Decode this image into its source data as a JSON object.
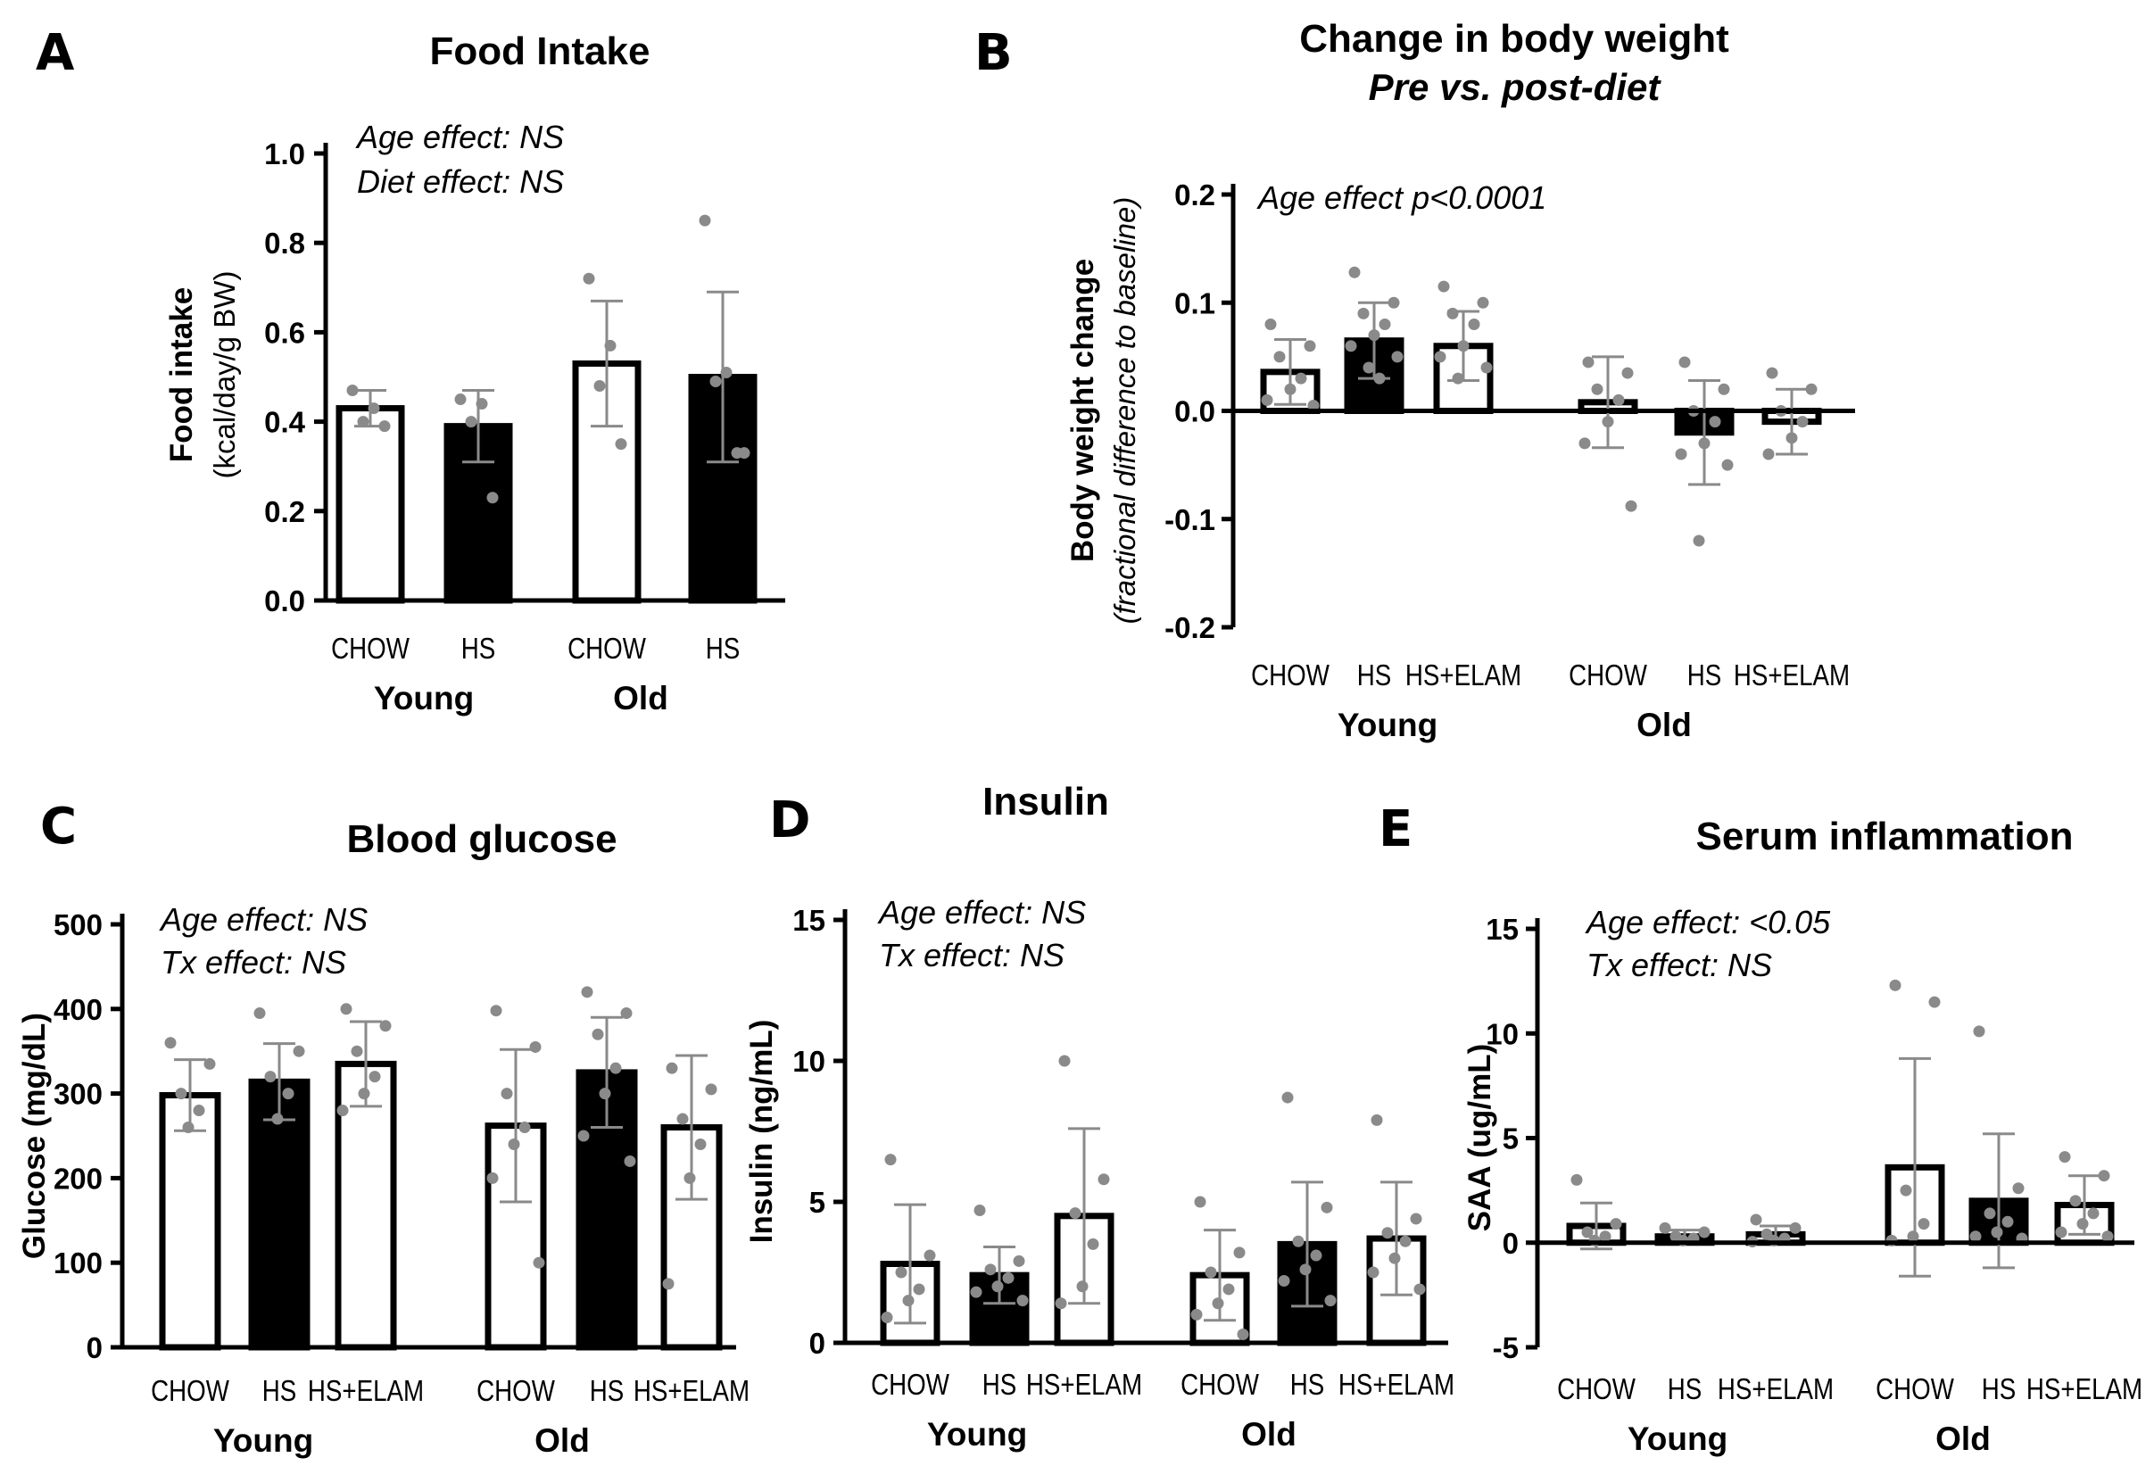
{
  "colors": {
    "axis": "#000000",
    "bar_black": "#000000",
    "bar_white": "#ffffff",
    "dot": "#8a8a8a",
    "error": "#8a8a8a"
  },
  "chart_data": [
    {
      "id": "A",
      "type": "bar",
      "panel_label": "A",
      "title": "Food Intake",
      "ylabel": "Food intake",
      "ylabel_sub": "(kcal/day/g BW)",
      "ylim": [
        0,
        1.0
      ],
      "yticks": [
        "0.0",
        "0.2",
        "0.4",
        "0.6",
        "0.8",
        "1.0"
      ],
      "annotations": [
        "Age effect: NS",
        "Diet effect: NS"
      ],
      "groups": [
        "Young",
        "Old"
      ],
      "bars": [
        {
          "group": "Young",
          "category": "CHOW",
          "value": 0.43,
          "sd": 0.04,
          "fill": "white",
          "points": [
            0.47,
            0.43,
            0.4,
            0.39
          ]
        },
        {
          "group": "Young",
          "category": "HS",
          "value": 0.39,
          "sd": 0.08,
          "fill": "black",
          "points": [
            0.45,
            0.44,
            0.4,
            0.23
          ]
        },
        {
          "group": "Old",
          "category": "CHOW",
          "value": 0.53,
          "sd": 0.14,
          "fill": "white",
          "points": [
            0.72,
            0.57,
            0.48,
            0.35
          ]
        },
        {
          "group": "Old",
          "category": "HS",
          "value": 0.5,
          "sd": 0.19,
          "fill": "black",
          "points": [
            0.85,
            0.51,
            0.49,
            0.33,
            0.33
          ]
        }
      ]
    },
    {
      "id": "B",
      "type": "bar",
      "panel_label": "B",
      "title": "Change in body weight",
      "subtitle": "Pre vs. post-diet",
      "ylabel": "Body weight change",
      "ylabel_sub": "(fractional difference to baseline)",
      "ylim": [
        -0.2,
        0.2
      ],
      "yticks": [
        "-0.2",
        "-0.1",
        "0.0",
        "0.1",
        "0.2"
      ],
      "annotations": [
        "Age effect p<0.0001"
      ],
      "groups": [
        "Young",
        "Old"
      ],
      "bars": [
        {
          "group": "Young",
          "category": "CHOW",
          "value": 0.036,
          "sd": 0.03,
          "fill": "white",
          "points": [
            0.08,
            0.06,
            0.05,
            0.03,
            0.02,
            0.01,
            0.005
          ]
        },
        {
          "group": "Young",
          "category": "HS",
          "value": 0.065,
          "sd": 0.035,
          "fill": "black",
          "points": [
            0.128,
            0.1,
            0.09,
            0.08,
            0.07,
            0.06,
            0.05,
            0.04,
            0.03
          ]
        },
        {
          "group": "Young",
          "category": "HS+ELAM",
          "value": 0.06,
          "sd": 0.032,
          "fill": "white",
          "points": [
            0.115,
            0.1,
            0.09,
            0.08,
            0.06,
            0.05,
            0.04,
            0.03
          ]
        },
        {
          "group": "Old",
          "category": "CHOW",
          "value": 0.008,
          "sd": 0.042,
          "fill": "white",
          "points": [
            0.045,
            0.035,
            0.02,
            0.01,
            -0.01,
            -0.03,
            -0.088
          ]
        },
        {
          "group": "Old",
          "category": "HS",
          "value": -0.02,
          "sd": 0.048,
          "fill": "black",
          "points": [
            0.045,
            0.02,
            0.0,
            -0.01,
            -0.03,
            -0.04,
            -0.05,
            -0.12
          ]
        },
        {
          "group": "Old",
          "category": "HS+ELAM",
          "value": -0.01,
          "sd": 0.03,
          "fill": "white",
          "points": [
            0.035,
            0.02,
            0.0,
            -0.01,
            -0.025,
            -0.04
          ]
        }
      ]
    },
    {
      "id": "C",
      "type": "bar",
      "panel_label": "C",
      "title": "Blood glucose",
      "ylabel": "Glucose (mg/dL)",
      "ylim": [
        0,
        500
      ],
      "yticks": [
        "0",
        "100",
        "200",
        "300",
        "400",
        "500"
      ],
      "annotations": [
        "Age effect: NS",
        "Tx effect: NS"
      ],
      "groups": [
        "Young",
        "Old"
      ],
      "bars": [
        {
          "group": "Young",
          "category": "CHOW",
          "value": 298,
          "sd": 42,
          "fill": "white",
          "points": [
            360,
            335,
            300,
            280,
            260
          ]
        },
        {
          "group": "Young",
          "category": "HS",
          "value": 314,
          "sd": 45,
          "fill": "black",
          "points": [
            395,
            350,
            320,
            300,
            270
          ]
        },
        {
          "group": "Young",
          "category": "HS+ELAM",
          "value": 335,
          "sd": 50,
          "fill": "white",
          "points": [
            400,
            380,
            350,
            320,
            300,
            280
          ]
        },
        {
          "group": "Old",
          "category": "CHOW",
          "value": 262,
          "sd": 90,
          "fill": "white",
          "points": [
            398,
            355,
            300,
            260,
            240,
            200,
            100
          ]
        },
        {
          "group": "Old",
          "category": "HS",
          "value": 325,
          "sd": 65,
          "fill": "black",
          "points": [
            420,
            395,
            370,
            330,
            300,
            250,
            220
          ]
        },
        {
          "group": "Old",
          "category": "HS+ELAM",
          "value": 260,
          "sd": 85,
          "fill": "white",
          "points": [
            330,
            305,
            270,
            240,
            200,
            75
          ]
        }
      ]
    },
    {
      "id": "D",
      "type": "bar",
      "panel_label": "D",
      "title": "Insulin",
      "ylabel": "Insulin (ng/mL)",
      "ylim": [
        0,
        15
      ],
      "yticks": [
        "0",
        "5",
        "10",
        "15"
      ],
      "annotations": [
        "Age effect: NS",
        "Tx effect: NS"
      ],
      "groups": [
        "Young",
        "Old"
      ],
      "bars": [
        {
          "group": "Young",
          "category": "CHOW",
          "value": 2.8,
          "sd": 2.1,
          "fill": "white",
          "points": [
            6.5,
            3.1,
            2.5,
            1.9,
            1.5,
            0.9
          ]
        },
        {
          "group": "Young",
          "category": "HS",
          "value": 2.4,
          "sd": 1.0,
          "fill": "black",
          "points": [
            4.7,
            2.9,
            2.6,
            2.3,
            2.0,
            1.8,
            1.5
          ]
        },
        {
          "group": "Young",
          "category": "HS+ELAM",
          "value": 4.5,
          "sd": 3.1,
          "fill": "white",
          "points": [
            10.0,
            5.8,
            4.6,
            3.5,
            2.0,
            1.4
          ]
        },
        {
          "group": "Old",
          "category": "CHOW",
          "value": 2.4,
          "sd": 1.6,
          "fill": "white",
          "points": [
            5.0,
            3.2,
            2.5,
            1.9,
            1.4,
            1.0,
            0.3
          ]
        },
        {
          "group": "Old",
          "category": "HS",
          "value": 3.5,
          "sd": 2.2,
          "fill": "black",
          "points": [
            8.7,
            4.8,
            3.6,
            3.1,
            2.6,
            2.2,
            1.5
          ]
        },
        {
          "group": "Old",
          "category": "HS+ELAM",
          "value": 3.7,
          "sd": 2.0,
          "fill": "white",
          "points": [
            7.9,
            4.4,
            3.9,
            3.6,
            3.0,
            2.5,
            1.9
          ]
        }
      ]
    },
    {
      "id": "E",
      "type": "bar",
      "panel_label": "E",
      "title": "Serum inflammation",
      "ylabel": "SAA (ug/mL)",
      "ylim": [
        -5,
        15
      ],
      "yticks": [
        "-5",
        "0",
        "5",
        "10",
        "15"
      ],
      "annotations": [
        "Age effect: <0.05",
        "Tx effect: NS"
      ],
      "groups": [
        "Young",
        "Old"
      ],
      "bars": [
        {
          "group": "Young",
          "category": "CHOW",
          "value": 0.8,
          "sd": 1.1,
          "fill": "white",
          "points": [
            3.0,
            0.9,
            0.5,
            0.3,
            0.1
          ]
        },
        {
          "group": "Young",
          "category": "HS",
          "value": 0.3,
          "sd": 0.3,
          "fill": "black",
          "points": [
            0.7,
            0.5,
            0.3,
            0.2,
            0.1
          ]
        },
        {
          "group": "Young",
          "category": "HS+ELAM",
          "value": 0.4,
          "sd": 0.4,
          "fill": "white",
          "points": [
            1.1,
            0.7,
            0.4,
            0.2,
            0.1,
            0.05
          ]
        },
        {
          "group": "Old",
          "category": "CHOW",
          "value": 3.6,
          "sd": 5.2,
          "fill": "white",
          "points": [
            12.3,
            11.5,
            2.5,
            0.9,
            0.3,
            0.1
          ]
        },
        {
          "group": "Old",
          "category": "HS",
          "value": 2.0,
          "sd": 3.2,
          "fill": "black",
          "points": [
            10.1,
            2.6,
            1.4,
            1.0,
            0.5,
            0.3,
            0.2
          ]
        },
        {
          "group": "Old",
          "category": "HS+ELAM",
          "value": 1.8,
          "sd": 1.4,
          "fill": "white",
          "points": [
            4.1,
            3.2,
            2.0,
            1.4,
            0.9,
            0.5,
            0.3
          ]
        }
      ]
    }
  ]
}
